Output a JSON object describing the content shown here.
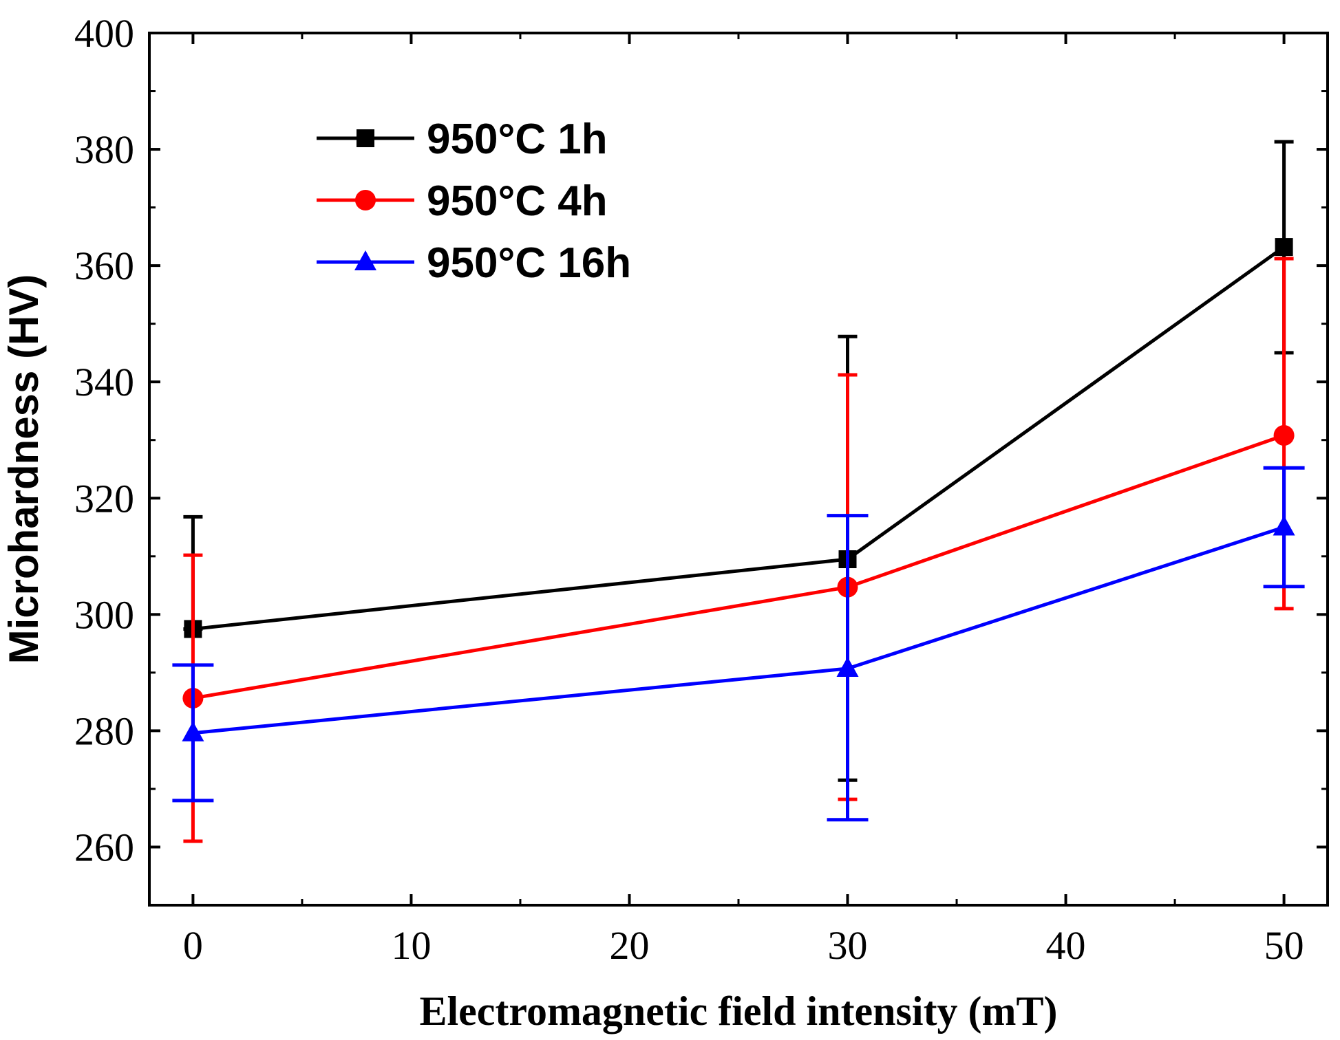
{
  "chart_data": {
    "type": "line",
    "title": "",
    "xlabel": "Electromagnetic field intensity (mT)",
    "ylabel": "Microhardness (HV)",
    "xlim": [
      -2,
      52
    ],
    "ylim": [
      250,
      400
    ],
    "x": [
      0,
      30,
      50
    ],
    "xticks": [
      0,
      10,
      20,
      30,
      40,
      50
    ],
    "xtick_labels": [
      "0",
      "10",
      "20",
      "30",
      "40",
      "50"
    ],
    "yticks": [
      260,
      280,
      300,
      320,
      340,
      360,
      380,
      400
    ],
    "ytick_labels": [
      "260",
      "280",
      "300",
      "320",
      "340",
      "360",
      "380",
      "400"
    ],
    "grid": false,
    "legend_position": "top-left",
    "series": [
      {
        "name": "950°C 1h",
        "color": "#000000",
        "marker": "square",
        "values": [
          297.5,
          309.5,
          363.2
        ],
        "err_low": [
          297.5,
          271.5,
          345.0
        ],
        "err_high": [
          316.8,
          347.8,
          381.3
        ]
      },
      {
        "name": "950°C 4h",
        "color": "#ff0000",
        "marker": "circle",
        "values": [
          285.6,
          304.7,
          330.8
        ],
        "err_low": [
          261.0,
          268.2,
          301.0
        ],
        "err_high": [
          310.2,
          341.2,
          361.2
        ]
      },
      {
        "name": "950°C 16h",
        "color": "#0000ff",
        "marker": "triangle",
        "values": [
          279.6,
          290.7,
          315.0
        ],
        "err_low": [
          268.0,
          264.7,
          304.8
        ],
        "err_high": [
          291.3,
          317.0,
          325.2
        ]
      }
    ]
  }
}
